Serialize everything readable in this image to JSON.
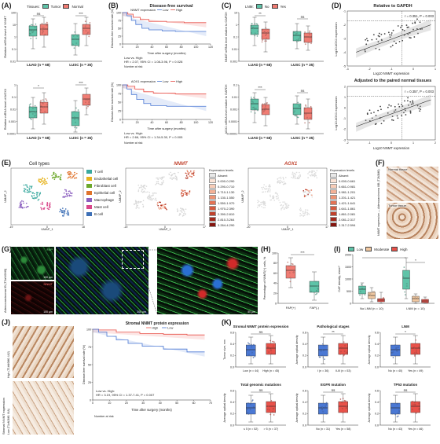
{
  "panels": {
    "A": {
      "label": "(A)",
      "legend_title": "Tissues:",
      "legend": [
        "Tumor",
        "Normal"
      ],
      "ylabel_top": "Relative mRNA level of NNMT",
      "ylabel_bottom": "Relative mRNA level of AOX1",
      "xcats": [
        "LUAD (n = 68)",
        "LUSC (n = 35)"
      ],
      "sig_top": [
        "ns",
        "***"
      ],
      "sig_bottom": [
        "*",
        "***"
      ],
      "yticks_top": [
        "100",
        "10",
        "1",
        "0.1",
        "0.01"
      ],
      "yticks_bottom": [
        "1",
        "0.1",
        "0.01",
        "0.001",
        "0.0001"
      ]
    },
    "B": {
      "label": "(B)",
      "title": "Disease-free survival",
      "km1": {
        "legend": "NNMT expression",
        "low": "Low",
        "high": "High",
        "stat1": "Low vs. High:",
        "stat2": "HR = 2.07, 95% CI = 1.08-3.96, P = 0.028"
      },
      "km2": {
        "legend": "AOX1 expression",
        "low": "Low",
        "high": "High",
        "stat1": "Low vs. High:",
        "stat2": "HR = 2.66, 95% CI = 1.34-5.30, P = 0.005"
      },
      "ylabel": "Disease-free survival rate (%)",
      "xlabel": "Time after surgery (months)",
      "risk": "Number at risk",
      "xticks": [
        "0",
        "20",
        "40",
        "60",
        "80",
        "100",
        "120"
      ],
      "yticks": [
        "100",
        "75",
        "50",
        "25",
        "0"
      ]
    },
    "C": {
      "label": "(C)",
      "legend_title": "LNM:",
      "legend": [
        "No",
        "Yes"
      ],
      "ylabel_top": "NNMT mRNA level relative to GAPDH",
      "ylabel_bottom": "AOX1 mRNA level relative to GAPDH",
      "xcats": [
        "LUAD (n = 68)",
        "LUSC (n = 35)"
      ],
      "sig_top": [
        "**",
        "ns"
      ],
      "sig_bottom": [
        "***",
        "ns"
      ],
      "yticks_top": [
        "10",
        "1",
        "0.1",
        "0.01",
        "0.001"
      ],
      "yticks_bottom": [
        "0.1",
        "0.01",
        "0.001",
        "0.0001",
        "0.00001"
      ]
    },
    "D": {
      "label": "(D)",
      "title_top": "Relative to GAPDH",
      "title_bottom": "Adjusted to the paired normal tissues",
      "stat_top": "r = 0.351, P = 0.003",
      "stat_bottom": "r = 0.357, P = 0.003",
      "ylabel": "Log10 AOX1 expression",
      "xlabel": "Log10 NNMT expression",
      "xticks_top": [
        "-3",
        "-2",
        "-1",
        "0",
        "1"
      ],
      "yticks_top": [
        "-1",
        "-2",
        "-3",
        "-4",
        "-5"
      ],
      "xticks_bottom": [
        "-2",
        "-1",
        "0",
        "1",
        "2"
      ],
      "yticks_bottom": [
        "2",
        "1",
        "0",
        "-1",
        "-2",
        "-3"
      ]
    },
    "E": {
      "label": "(E)",
      "title_left": "Cell types",
      "title_mid": "NNMT",
      "title_right": "AOX1",
      "celltypes": [
        "T cell",
        "Endothelial cell",
        "Fibroblast cell",
        "Epithelial cell",
        "Macrophage",
        "Mast cell",
        "B cell"
      ],
      "celltype_colors": [
        "#3aa99f",
        "#e6b31e",
        "#6ca82b",
        "#e0732b",
        "#8b5fbf",
        "#d9468a",
        "#3d6fb6"
      ],
      "xlabel": "UMAP_1",
      "ylabel": "UMAP_2",
      "xticks_left": [
        "-19",
        "0",
        "18"
      ],
      "xticks_mid": [
        "-20",
        "0",
        "17"
      ],
      "xticks_right": [
        "-20",
        "0",
        "17"
      ],
      "levels_title": "Expression levels",
      "levels_nnmt": [
        "Absent",
        "0.000-0.290",
        "0.290-0.710",
        "0.710-1.130",
        "1.130-1.550",
        "1.550-1.970",
        "1.970-2.390",
        "2.390-2.810",
        "2.810-3.264",
        "3.264-4.290"
      ],
      "levels_aox1": [
        "Absent",
        "0.000-0.661",
        "0.661-0.981",
        "0.981-1.201",
        "1.201-1.421",
        "1.421-1.641",
        "1.641-1.861",
        "1.861-2.081",
        "2.081-2.317",
        "2.317-2.594"
      ],
      "nnmt_colors": [
        "#e8e8e8",
        "#fbe3d6",
        "#f8cdb8",
        "#f4b196",
        "#ee9373",
        "#e47355",
        "#d65a3f",
        "#c0412c",
        "#a3281c",
        "#84150f"
      ],
      "aox1_colors": [
        "#e8e8e8",
        "#fbe3d6",
        "#f8cdb8",
        "#f4b196",
        "#ee9373",
        "#e47355",
        "#d65a3f",
        "#c0412c",
        "#a3281c",
        "#84150f"
      ]
    },
    "F": {
      "label": "(F)",
      "side": "NNMT expression — Adenocarcinoma IIIB (T2N3M0)",
      "img1": "Normal tissue",
      "img2": "Tumor tissue"
    },
    "G": {
      "label": "(G)",
      "side": "Adenocarcinoma IB (T2aN0M0)",
      "m1": "FAP",
      "m2": "NNMT",
      "scale": "100 μm",
      "scale2": "200 μm",
      "scale3": "50 μm"
    },
    "H": {
      "label": "(H)",
      "ylabel": "Percentage of NNMT(+) cells, %",
      "xcats": [
        "FAP(+)",
        "FAP(-)"
      ],
      "sig": "***",
      "yticks": [
        "100",
        "80",
        "60",
        "40",
        "20",
        "0"
      ]
    },
    "I": {
      "label": "(I)",
      "legend": [
        "Low",
        "Moderate",
        "High"
      ],
      "ylabel": "CAF density, n/mm²",
      "xcats": [
        "No LNM (n = 10)",
        "LNM (n = 10)"
      ],
      "sig": "*",
      "yticks": [
        "2000",
        "1500",
        "1000",
        "500",
        "0"
      ]
    },
    "J": {
      "label": "(J)",
      "side": "Stromal NNMT expression",
      "high_lbl": "High (T1bN0M0, IA2)",
      "low_lbl": "Low (T1cN2M0, IIIA)",
      "title": "Stromal NNMT protein expression",
      "high": "High",
      "low": "Low",
      "stat1": "Low vs. High:",
      "stat2": "HR = 3.19, 95% CI = 1.37-7.41, P = 0.007",
      "ylabel": "Disease-free survival rate (%)",
      "xlabel": "Time after surgery (months)",
      "risk": "Number at risk",
      "xticks": [
        "0",
        "10",
        "20",
        "30",
        "40",
        "50",
        "60",
        "70"
      ],
      "yticks": [
        "100",
        "75",
        "50",
        "25",
        "0"
      ]
    },
    "K": {
      "label": "(K)",
      "sub": [
        {
          "title": "Stromal NNMT protein expression",
          "ylabel": "Tumor size, mm",
          "x": [
            "Low (n = 44)",
            "High (n = 45)"
          ],
          "sig": "ns"
        },
        {
          "title": "Pathological stages",
          "ylabel": "Average optical density",
          "x": [
            "I (n = 36)",
            "II-III (n = 53)"
          ],
          "sig": "**"
        },
        {
          "title": "LNM",
          "ylabel": "Average optical density",
          "x": [
            "No (n = 40)",
            "Yes (n = 49)"
          ],
          "sig": "*"
        },
        {
          "title": "Total genomic mutations",
          "ylabel": "Average optical density",
          "x": [
            "≤ 5 (n = 52)",
            "> 5 (n = 37)"
          ],
          "sig": "ns"
        },
        {
          "title": "EGFR mutation",
          "ylabel": "Average optical density",
          "x": [
            "No (n = 31)",
            "Yes (n = 58)"
          ],
          "sig": "ns"
        },
        {
          "title": "TP53 mutation",
          "ylabel": "Average optical density",
          "x": [
            "No (n = 43)",
            "Yes (n = 46)"
          ],
          "sig": "ns"
        }
      ]
    }
  },
  "colors": {
    "tumor": "#5fc3a8",
    "normal": "#f07c73",
    "low": "#4a78d4",
    "high": "#e8524a",
    "stain": "#c99a73",
    "if_green": "#38b24a",
    "if_red": "#d12a2a"
  }
}
